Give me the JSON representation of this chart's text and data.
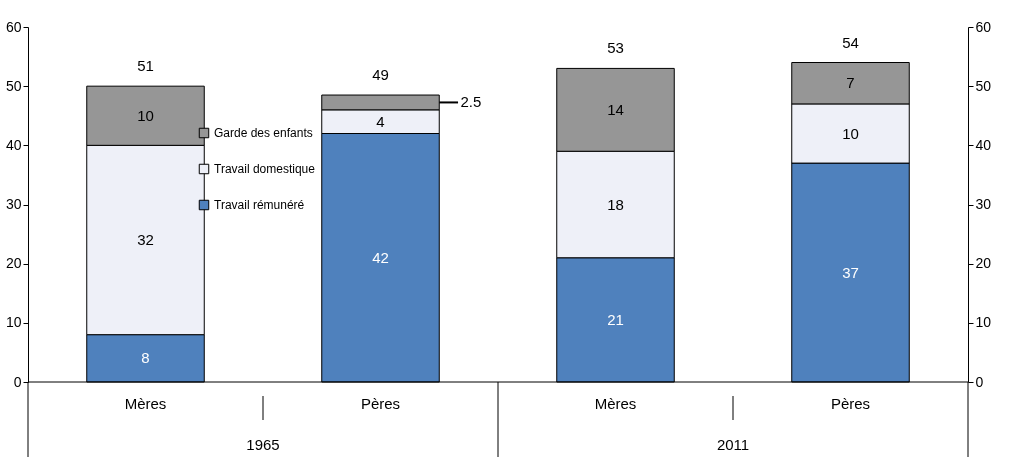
{
  "chart_data": {
    "type": "bar",
    "stacked": true,
    "categories": [
      "Mères",
      "Pères",
      "Mères",
      "Pères"
    ],
    "series": [
      {
        "name": "Travail rémunéré",
        "color": "#4f81bd",
        "values": [
          8,
          42,
          21,
          37
        ]
      },
      {
        "name": "Travail domestique",
        "color": "#eef0f8",
        "values": [
          32,
          4,
          18,
          10
        ]
      },
      {
        "name": "Garde des enfants",
        "color": "#969696",
        "values": [
          10,
          2.5,
          14,
          7
        ]
      }
    ],
    "data_labels": true,
    "totals": [
      "51",
      "49",
      "53",
      "54"
    ],
    "annotations": [
      "1965",
      "2011"
    ],
    "ylim": [
      0,
      60
    ],
    "yticks": [
      0,
      10,
      20,
      30,
      40,
      50,
      60
    ],
    "y2lim": [
      0,
      60
    ],
    "y2ticks": [
      0,
      10,
      20,
      30,
      40,
      50,
      60
    ],
    "grid": false,
    "legend": "left"
  }
}
